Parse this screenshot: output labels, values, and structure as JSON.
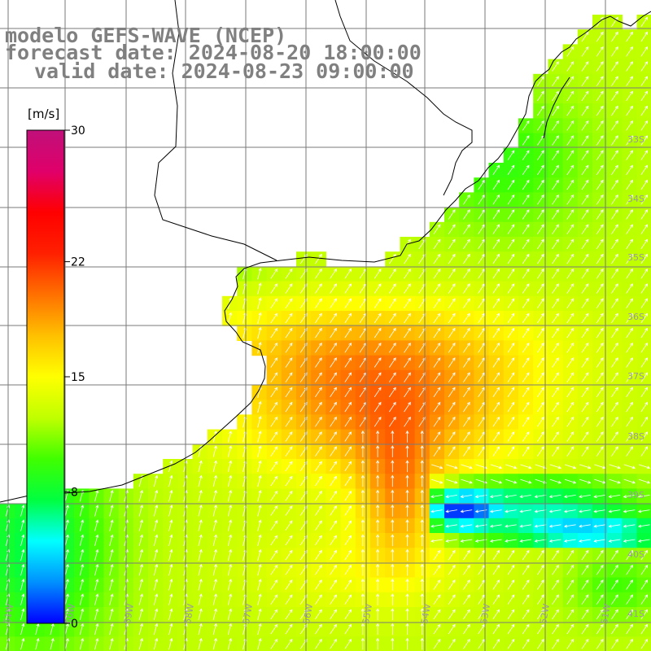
{
  "header": {
    "title": "modelo GEFS-WAVE (NCEP)",
    "forecast_label": "forecast date: 2024-08-20 18:00:00",
    "valid_label": "valid date: 2024-08-23 09:00:00"
  },
  "colorbar": {
    "unit": "[m/s]",
    "min": 0,
    "max": 30,
    "ticks": [
      {
        "value": 30,
        "label": "30"
      },
      {
        "value": 22,
        "label": "22"
      },
      {
        "value": 15,
        "label": "15"
      },
      {
        "value": 8,
        "label": "8"
      },
      {
        "value": 0,
        "label": "0"
      }
    ],
    "colors": [
      "#0000ff",
      "#0090ff",
      "#00ffff",
      "#00ff40",
      "#40ff00",
      "#c0ff00",
      "#ffff00",
      "#ffc000",
      "#ff7000",
      "#ff2000",
      "#ff0000",
      "#e0006a",
      "#c0107a"
    ]
  },
  "axes": {
    "lat_labels": [
      "33S",
      "34S",
      "35S",
      "36S",
      "37S",
      "38S",
      "39S",
      "40S",
      "41S"
    ],
    "lon_labels": [
      "61W",
      "60W",
      "59W",
      "58W",
      "57W",
      "56W",
      "55W",
      "54W",
      "53W",
      "52W",
      "51W"
    ]
  },
  "field": {
    "variable": "wind speed",
    "unit": "m/s",
    "lon_range": [
      -62,
      -51
    ],
    "lat_range": [
      -41.5,
      -32.2
    ],
    "grid_step_deg": 0.25,
    "wind_from": "southwest",
    "max_speed": 24
  }
}
